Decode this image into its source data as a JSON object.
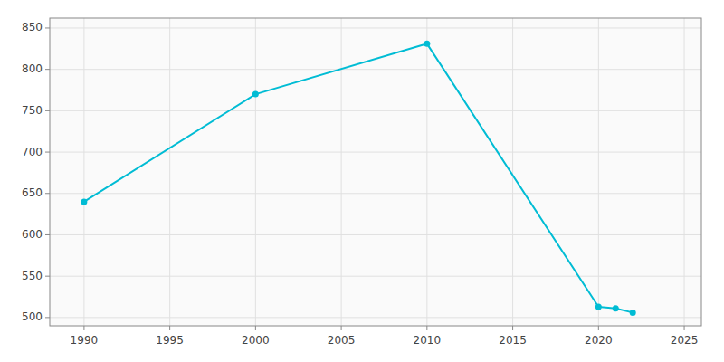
{
  "chart_data": {
    "type": "line",
    "x": [
      1990,
      2000,
      2010,
      2020,
      2021,
      2022
    ],
    "values": [
      640,
      770,
      831,
      513,
      511,
      506
    ],
    "color": "#00BCD4",
    "marker": "circle",
    "xlim": [
      1988,
      2026
    ],
    "ylim": [
      490,
      862
    ],
    "xticks": [
      1990,
      1995,
      2000,
      2005,
      2010,
      2015,
      2020,
      2025
    ],
    "yticks": [
      500,
      550,
      600,
      650,
      700,
      750,
      800,
      850
    ],
    "grid": true
  }
}
